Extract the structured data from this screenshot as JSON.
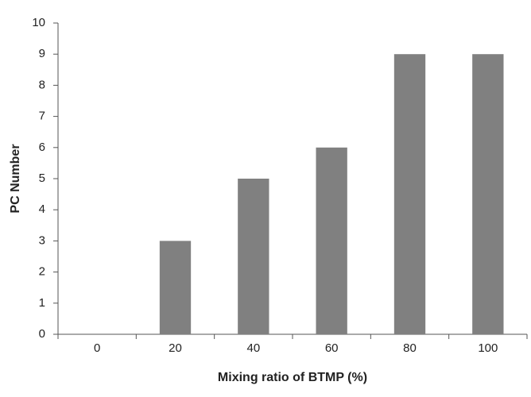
{
  "chart_data": {
    "type": "bar",
    "x_label": "Mixing ratio of BTMP (%)",
    "y_label": "PC Number",
    "categories": [
      "0",
      "20",
      "40",
      "60",
      "80",
      "100"
    ],
    "values": [
      0,
      3,
      5,
      6,
      9,
      9
    ],
    "color": "#808080",
    "ylim": [
      0,
      10
    ],
    "yticks": [
      0,
      1,
      2,
      3,
      4,
      5,
      6,
      7,
      8,
      9,
      10
    ],
    "grid": false
  }
}
